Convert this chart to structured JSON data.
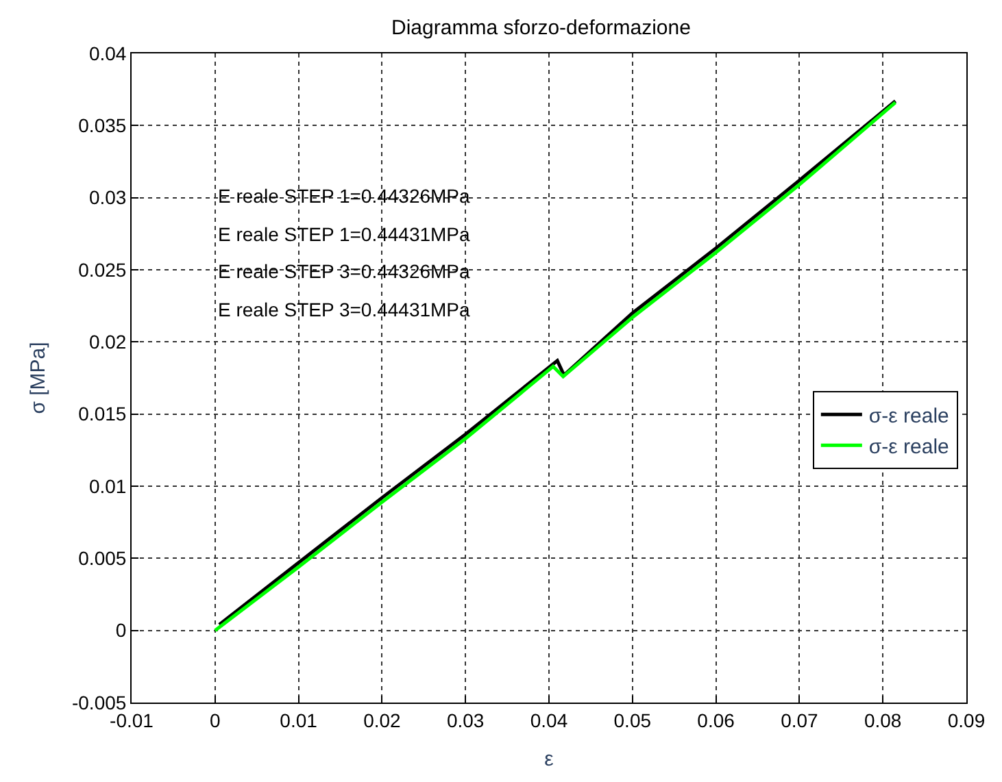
{
  "chart_data": {
    "type": "line",
    "title": "Diagramma sforzo-deformazione",
    "xlabel": "ε",
    "ylabel": "σ [MPa]",
    "xlim": [
      -0.01,
      0.09
    ],
    "xticks": [
      -0.01,
      0,
      0.01,
      0.02,
      0.03,
      0.04,
      0.05,
      0.06,
      0.07,
      0.08,
      0.09
    ],
    "ylim": [
      -0.005,
      0.04
    ],
    "yticks": [
      -0.005,
      0,
      0.005,
      0.01,
      0.015,
      0.02,
      0.025,
      0.03,
      0.035,
      0.04
    ],
    "grid": true,
    "legend": "right",
    "line_style": "solid",
    "series": [
      {
        "name": "σ-ε reale",
        "color": "#000000",
        "x": [
          0.0005,
          0.01,
          0.02,
          0.03,
          0.041,
          0.0418,
          0.05,
          0.06,
          0.07,
          0.0815
        ],
        "values": [
          0.0004,
          0.0047,
          0.0092,
          0.0136,
          0.0187,
          0.0177,
          0.022,
          0.0265,
          0.0312,
          0.0367
        ]
      },
      {
        "name": "σ-ε reale",
        "color": "#00ff00",
        "x": [
          0,
          0.01,
          0.02,
          0.03,
          0.0405,
          0.0417,
          0.05,
          0.06,
          0.07,
          0.0815
        ],
        "values": [
          0,
          0.0044,
          0.0089,
          0.0133,
          0.0183,
          0.0176,
          0.0217,
          0.0262,
          0.0309,
          0.0366
        ]
      }
    ],
    "annotations": [
      "E reale STEP 1=0.44326MPa",
      "E reale STEP 1=0.44431MPa",
      "E reale STEP 3=0.44326MPa",
      "E reale STEP 3=0.44431MPa"
    ]
  }
}
